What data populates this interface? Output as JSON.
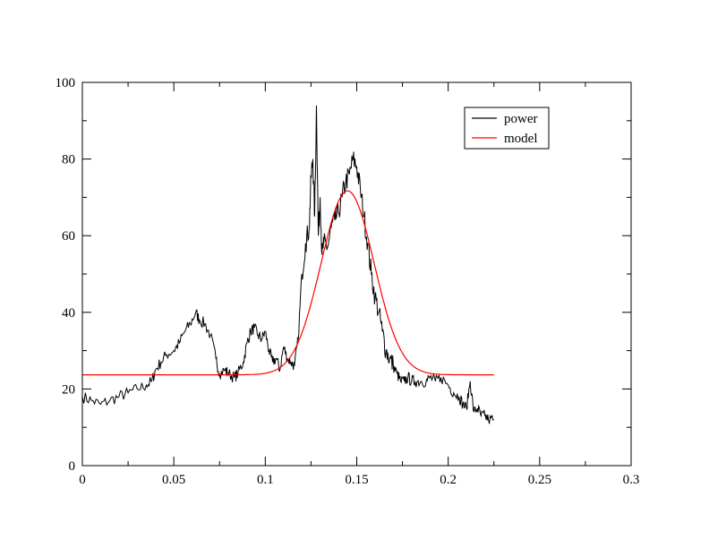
{
  "chart_data": {
    "type": "line",
    "title": "",
    "xlabel": "",
    "ylabel": "",
    "xlim": [
      0,
      0.3
    ],
    "ylim": [
      0,
      100
    ],
    "x_ticks": [
      0,
      0.05,
      0.1,
      0.15,
      0.2,
      0.25,
      0.3
    ],
    "x_tick_labels": [
      "0",
      "0.05",
      "0.1",
      "0.15",
      "0.2",
      "0.25",
      "0.3"
    ],
    "y_ticks": [
      0,
      20,
      40,
      60,
      80,
      100
    ],
    "y_tick_labels": [
      "0",
      "20",
      "40",
      "60",
      "80",
      "100"
    ],
    "grid": false,
    "legend_position": "top-right",
    "series": [
      {
        "name": "power",
        "color": "#000000",
        "x": [
          0,
          0.005,
          0.01,
          0.015,
          0.02,
          0.025,
          0.03,
          0.035,
          0.038,
          0.04,
          0.043,
          0.046,
          0.05,
          0.053,
          0.056,
          0.059,
          0.062,
          0.064,
          0.067,
          0.07,
          0.073,
          0.075,
          0.078,
          0.08,
          0.083,
          0.085,
          0.088,
          0.09,
          0.092,
          0.094,
          0.096,
          0.098,
          0.1,
          0.102,
          0.104,
          0.106,
          0.108,
          0.11,
          0.112,
          0.114,
          0.116,
          0.118,
          0.12,
          0.122,
          0.124,
          0.125,
          0.126,
          0.127,
          0.128,
          0.129,
          0.13,
          0.131,
          0.132,
          0.134,
          0.136,
          0.138,
          0.14,
          0.142,
          0.144,
          0.146,
          0.148,
          0.15,
          0.152,
          0.154,
          0.156,
          0.158,
          0.16,
          0.162,
          0.164,
          0.166,
          0.168,
          0.17,
          0.172,
          0.174,
          0.176,
          0.178,
          0.18,
          0.182,
          0.185,
          0.188,
          0.19,
          0.193,
          0.196,
          0.2,
          0.203,
          0.206,
          0.208,
          0.21,
          0.212,
          0.214,
          0.216,
          0.218,
          0.22,
          0.222,
          0.225
        ],
        "y": [
          18,
          17,
          16,
          17,
          18,
          19,
          20,
          21,
          22,
          25,
          27,
          29,
          30,
          32,
          35,
          37,
          40,
          38,
          37,
          34,
          28,
          24,
          25,
          24,
          23,
          24,
          27,
          32,
          35,
          36,
          34,
          33,
          35,
          30,
          27,
          28,
          25,
          31,
          28,
          27,
          26,
          33,
          50,
          58,
          62,
          75,
          80,
          65,
          94,
          60,
          70,
          55,
          58,
          57,
          62,
          64,
          66,
          70,
          74,
          76,
          80,
          78,
          72,
          65,
          58,
          50,
          44,
          40,
          35,
          30,
          28,
          26,
          24,
          22,
          22,
          23,
          22,
          22,
          22,
          22,
          23,
          22,
          23,
          21,
          19,
          18,
          16,
          15,
          22,
          14,
          15,
          13,
          13,
          12,
          12
        ]
      },
      {
        "name": "model",
        "color": "#ff0000",
        "baseline": 23.7,
        "amplitude": 48,
        "center": 0.145,
        "sigma": 0.0145,
        "x_range": [
          0,
          0.225
        ]
      }
    ]
  }
}
